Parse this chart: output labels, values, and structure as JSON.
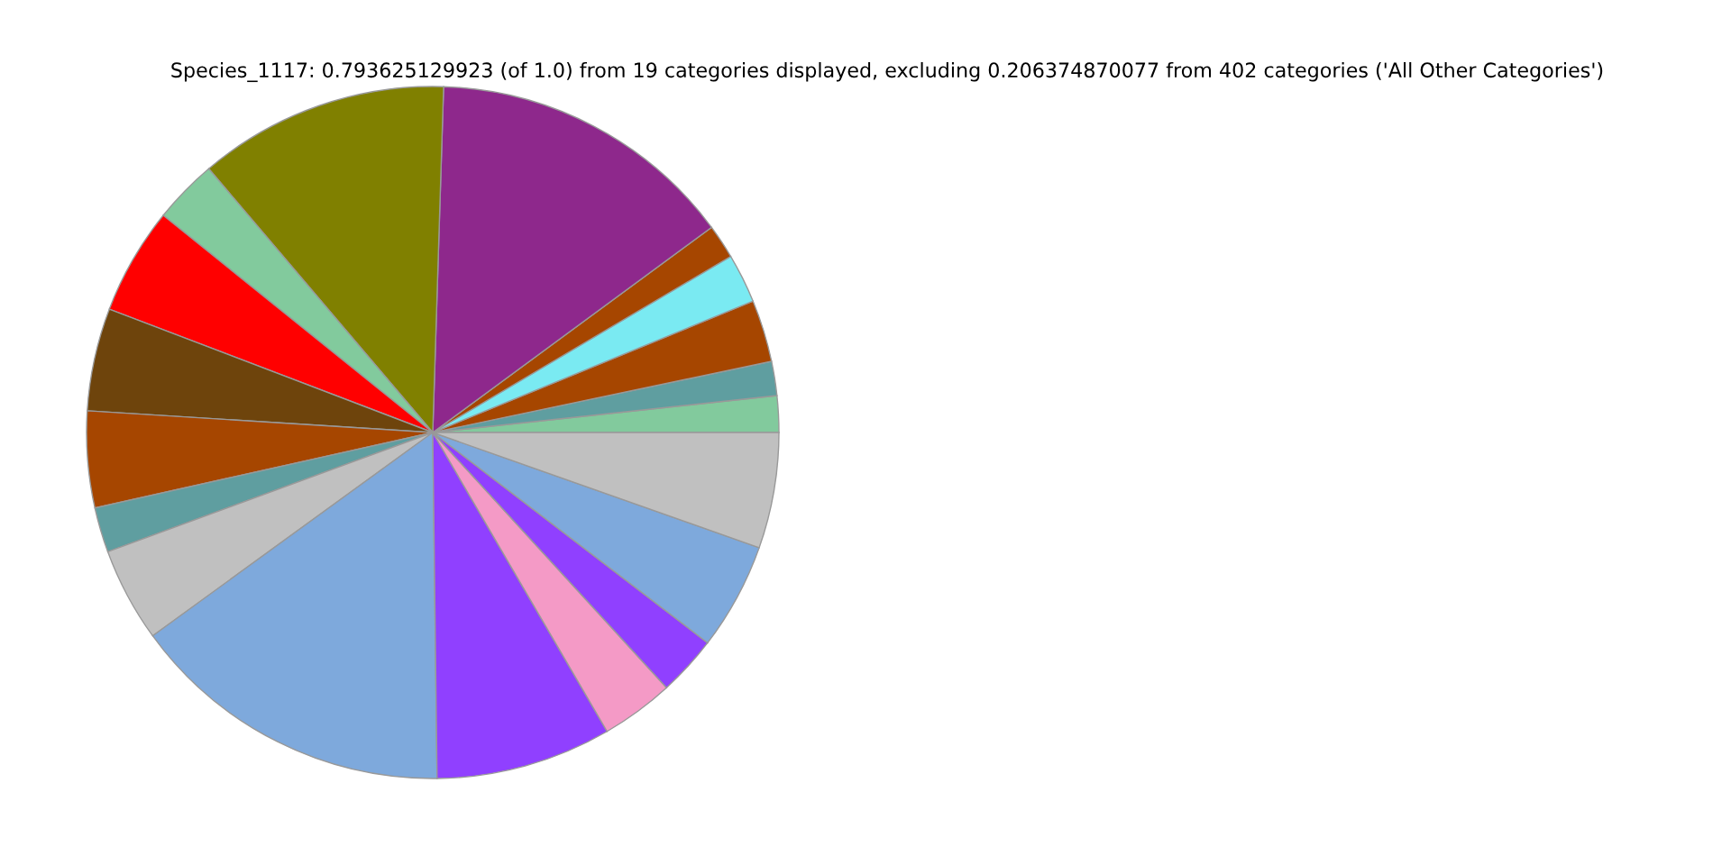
{
  "chart_data": {
    "type": "pie",
    "title": "Species_1117: 0.793625129923 (of 1.0) from 19 categories displayed, excluding 0.206374870077 from 402 categories ('All Other Categories')",
    "categories": [
      null,
      null,
      null,
      null,
      null,
      null,
      null,
      null,
      null,
      null,
      null,
      null,
      null,
      null,
      null,
      null,
      null,
      null,
      null
    ],
    "values": [
      1.7,
      1.6,
      2.9,
      2.3,
      1.6,
      14.4,
      11.7,
      3.0,
      5.0,
      4.8,
      4.5,
      2.1,
      4.4,
      15.2,
      8.2,
      3.4,
      2.8,
      5.0,
      5.4
    ],
    "colors": [
      "#82ca9d",
      "#5f9ea0",
      "#a64600",
      "#7aeaf2",
      "#a64600",
      "#8e288c",
      "#808000",
      "#82ca9d",
      "#ff0000",
      "#6e440c",
      "#a64600",
      "#5f9ea0",
      "#c0c0c0",
      "#7ea9dc",
      "#9040ff",
      "#f49ac6",
      "#9040ff",
      "#7ea9dc",
      "#c0c0c0"
    ]
  }
}
